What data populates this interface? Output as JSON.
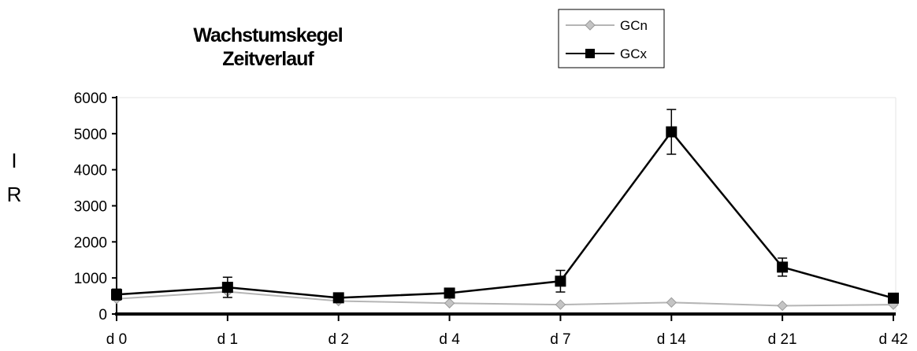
{
  "chart_data": {
    "type": "line",
    "title_lines": [
      "Wachstumskegel",
      "Zeitverlauf"
    ],
    "ylabel": "IR",
    "xlabel": "",
    "categories": [
      "d 0",
      "d 1",
      "d 2",
      "d 4",
      "d 7",
      "d 14",
      "d 21",
      "d 42"
    ],
    "ylim": [
      0,
      6000
    ],
    "yticks": [
      0,
      1000,
      2000,
      3000,
      4000,
      5000,
      6000
    ],
    "grid": false,
    "legend_position": "top-right",
    "series": [
      {
        "name": "GCn",
        "marker": "diamond",
        "color": "#b5b5b5",
        "values": [
          420,
          620,
          360,
          300,
          260,
          320,
          230,
          260
        ],
        "errors": [
          0,
          0,
          0,
          0,
          0,
          0,
          0,
          0
        ]
      },
      {
        "name": "GCx",
        "marker": "square",
        "color": "#000000",
        "values": [
          540,
          740,
          450,
          580,
          910,
          5050,
          1300,
          440
        ],
        "errors": [
          150,
          280,
          100,
          80,
          300,
          620,
          250,
          80
        ]
      }
    ]
  }
}
